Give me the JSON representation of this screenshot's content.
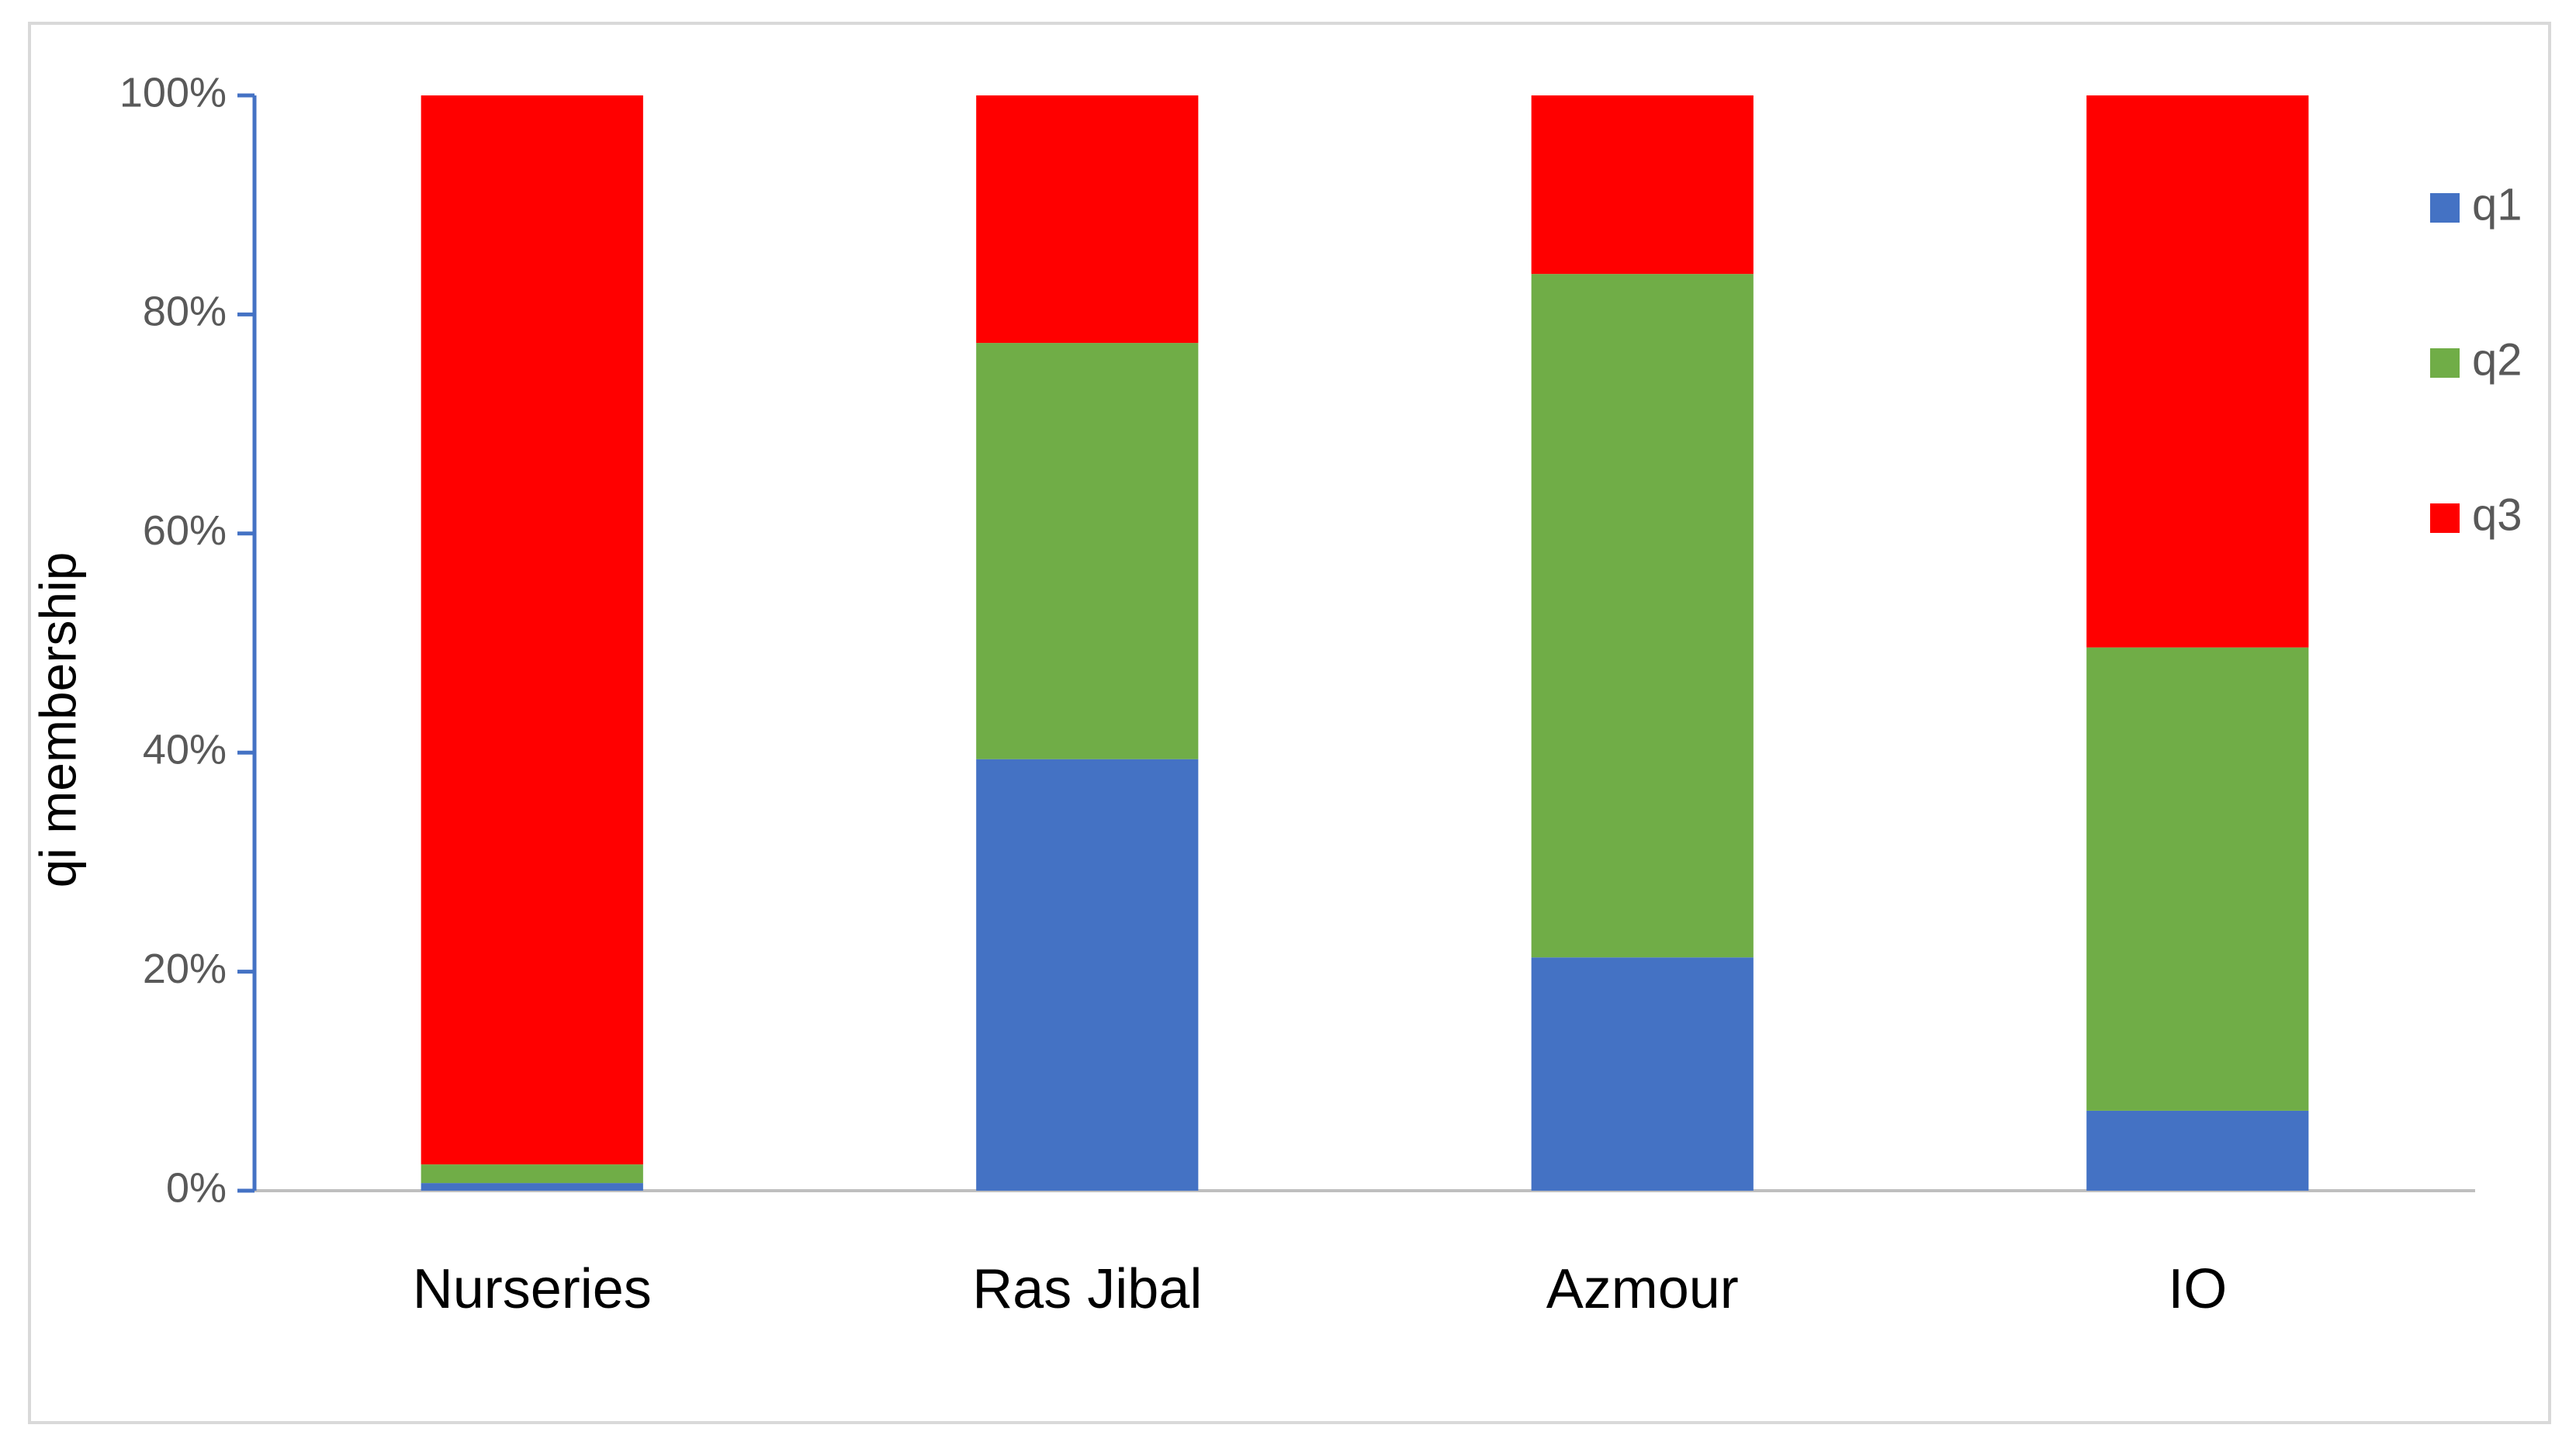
{
  "chart_data": {
    "type": "stacked_bar",
    "y_label": "qi membership",
    "categories": [
      "Nurseries",
      "Ras Jibal",
      "Azmour",
      "IO"
    ],
    "series": [
      {
        "name": "q1",
        "color": "#4472c4",
        "values": [
          0.7,
          39.4,
          21.3,
          7.3
        ]
      },
      {
        "name": "q2",
        "color": "#70ad47",
        "values": [
          1.7,
          38.0,
          62.4,
          42.3
        ]
      },
      {
        "name": "q3",
        "color": "#ff0000",
        "values": [
          97.6,
          22.6,
          16.3,
          50.4
        ]
      }
    ],
    "ylim": [
      0,
      100
    ],
    "yticks": [
      {
        "value": 0,
        "label": "0%"
      },
      {
        "value": 20,
        "label": "20%"
      },
      {
        "value": 40,
        "label": "40%"
      },
      {
        "value": 60,
        "label": "60%"
      },
      {
        "value": 80,
        "label": "80%"
      },
      {
        "value": 100,
        "label": "100%"
      }
    ],
    "legend": "right"
  }
}
